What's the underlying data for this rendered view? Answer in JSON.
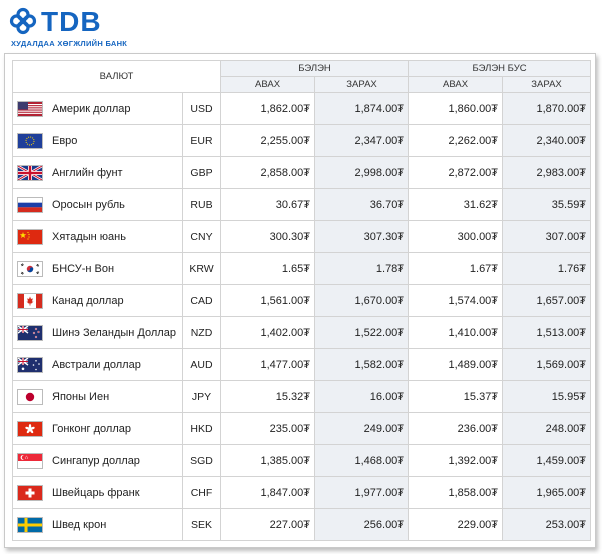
{
  "brand": {
    "name": "TDB",
    "tagline": "ХУДАЛДАА ХӨГЖЛИЙН БАНК",
    "color": "#1565c0"
  },
  "table": {
    "headers": {
      "currency": "ВАЛЮТ",
      "cash": "БЭЛЭН",
      "noncash": "БЭЛЭН БУС",
      "buy": "АВАХ",
      "sell": "ЗАРАХ"
    },
    "rows": [
      {
        "flag": "us-flag-icon",
        "name": "Америк доллар",
        "code": "USD",
        "cash_buy": "1,862.00₮",
        "cash_sell": "1,874.00₮",
        "noncash_buy": "1,860.00₮",
        "noncash_sell": "1,870.00₮"
      },
      {
        "flag": "eu-flag-icon",
        "name": "Евро",
        "code": "EUR",
        "cash_buy": "2,255.00₮",
        "cash_sell": "2,347.00₮",
        "noncash_buy": "2,262.00₮",
        "noncash_sell": "2,340.00₮"
      },
      {
        "flag": "gb-flag-icon",
        "name": "Английн фунт",
        "code": "GBP",
        "cash_buy": "2,858.00₮",
        "cash_sell": "2,998.00₮",
        "noncash_buy": "2,872.00₮",
        "noncash_sell": "2,983.00₮"
      },
      {
        "flag": "ru-flag-icon",
        "name": "Оросын рубль",
        "code": "RUB",
        "cash_buy": "30.67₮",
        "cash_sell": "36.70₮",
        "noncash_buy": "31.62₮",
        "noncash_sell": "35.59₮"
      },
      {
        "flag": "cn-flag-icon",
        "name": "Хятадын юань",
        "code": "CNY",
        "cash_buy": "300.30₮",
        "cash_sell": "307.30₮",
        "noncash_buy": "300.00₮",
        "noncash_sell": "307.00₮"
      },
      {
        "flag": "kr-flag-icon",
        "name": "БНСУ-н Вон",
        "code": "KRW",
        "cash_buy": "1.65₮",
        "cash_sell": "1.78₮",
        "noncash_buy": "1.67₮",
        "noncash_sell": "1.76₮"
      },
      {
        "flag": "ca-flag-icon",
        "name": "Канад доллар",
        "code": "CAD",
        "cash_buy": "1,561.00₮",
        "cash_sell": "1,670.00₮",
        "noncash_buy": "1,574.00₮",
        "noncash_sell": "1,657.00₮"
      },
      {
        "flag": "nz-flag-icon",
        "name": "Шинэ Зеландын Доллар",
        "code": "NZD",
        "cash_buy": "1,402.00₮",
        "cash_sell": "1,522.00₮",
        "noncash_buy": "1,410.00₮",
        "noncash_sell": "1,513.00₮"
      },
      {
        "flag": "au-flag-icon",
        "name": "Австрали доллар",
        "code": "AUD",
        "cash_buy": "1,477.00₮",
        "cash_sell": "1,582.00₮",
        "noncash_buy": "1,489.00₮",
        "noncash_sell": "1,569.00₮"
      },
      {
        "flag": "jp-flag-icon",
        "name": "Японы Иен",
        "code": "JPY",
        "cash_buy": "15.32₮",
        "cash_sell": "16.00₮",
        "noncash_buy": "15.37₮",
        "noncash_sell": "15.95₮"
      },
      {
        "flag": "hk-flag-icon",
        "name": "Гонконг доллар",
        "code": "HKD",
        "cash_buy": "235.00₮",
        "cash_sell": "249.00₮",
        "noncash_buy": "236.00₮",
        "noncash_sell": "248.00₮"
      },
      {
        "flag": "sg-flag-icon",
        "name": "Сингапур доллар",
        "code": "SGD",
        "cash_buy": "1,385.00₮",
        "cash_sell": "1,468.00₮",
        "noncash_buy": "1,392.00₮",
        "noncash_sell": "1,459.00₮"
      },
      {
        "flag": "ch-flag-icon",
        "name": "Швейцарь франк",
        "code": "CHF",
        "cash_buy": "1,847.00₮",
        "cash_sell": "1,977.00₮",
        "noncash_buy": "1,858.00₮",
        "noncash_sell": "1,965.00₮"
      },
      {
        "flag": "se-flag-icon",
        "name": "Швед крон",
        "code": "SEK",
        "cash_buy": "227.00₮",
        "cash_sell": "256.00₮",
        "noncash_buy": "229.00₮",
        "noncash_sell": "253.00₮"
      }
    ]
  }
}
